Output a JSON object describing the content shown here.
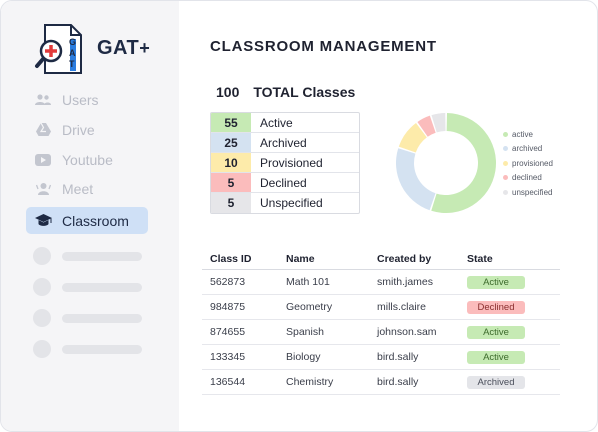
{
  "brand": {
    "name": "GAT",
    "plus": "+",
    "logo_letters": [
      "G",
      "A",
      "T"
    ]
  },
  "sidebar": {
    "items": [
      {
        "label": "Users",
        "icon": "users-icon",
        "active": false
      },
      {
        "label": "Drive",
        "icon": "drive-icon",
        "active": false
      },
      {
        "label": "Youtube",
        "icon": "youtube-icon",
        "active": false
      },
      {
        "label": "Meet",
        "icon": "meet-icon",
        "active": false
      },
      {
        "label": "Classroom",
        "icon": "graduation-cap-icon",
        "active": true
      }
    ],
    "placeholder_count": 4
  },
  "main": {
    "title": "CLASSROOM MANAGEMENT",
    "total": {
      "count": "100",
      "label": "TOTAL Classes"
    },
    "status_summary": [
      {
        "count": "55",
        "label": "Active",
        "color": "#c6eab4"
      },
      {
        "count": "25",
        "label": "Archived",
        "color": "#d4e2f1"
      },
      {
        "count": "10",
        "label": "Provisioned",
        "color": "#fdebaa"
      },
      {
        "count": "5",
        "label": "Declined",
        "color": "#fbbcbc"
      },
      {
        "count": "5",
        "label": "Unspecified",
        "color": "#e6e6e9"
      }
    ],
    "legend": [
      "active",
      "archived",
      "provisioned",
      "declined",
      "unspecified"
    ],
    "table": {
      "headers": [
        "Class ID",
        "Name",
        "Created by",
        "State"
      ],
      "rows": [
        {
          "id": "562873",
          "name": "Math 101",
          "created_by": "smith.james",
          "state": "Active"
        },
        {
          "id": "984875",
          "name": "Geometry",
          "created_by": "mills.claire",
          "state": "Declined"
        },
        {
          "id": "874655",
          "name": "Spanish",
          "created_by": "johnson.sam",
          "state": "Active"
        },
        {
          "id": "133345",
          "name": "Biology",
          "created_by": "bird.sally",
          "state": "Active"
        },
        {
          "id": "136544",
          "name": "Chemistry",
          "created_by": "bird.sally",
          "state": "Archived"
        }
      ]
    },
    "state_colors": {
      "Active": {
        "bg": "#c6eab4",
        "fg": "#3d6b2c"
      },
      "Declined": {
        "bg": "#fbbcbc",
        "fg": "#8a2f2f"
      },
      "Archived": {
        "bg": "#e4e5e9",
        "fg": "#4a4e5a"
      }
    }
  },
  "chart_data": {
    "type": "pie",
    "categories": [
      "active",
      "archived",
      "provisioned",
      "declined",
      "unspecified"
    ],
    "values": [
      55,
      25,
      10,
      5,
      5
    ],
    "colors": [
      "#c6eab4",
      "#d4e2f1",
      "#fdebaa",
      "#fbbcbc",
      "#e6e6e9"
    ],
    "legend": "right"
  }
}
